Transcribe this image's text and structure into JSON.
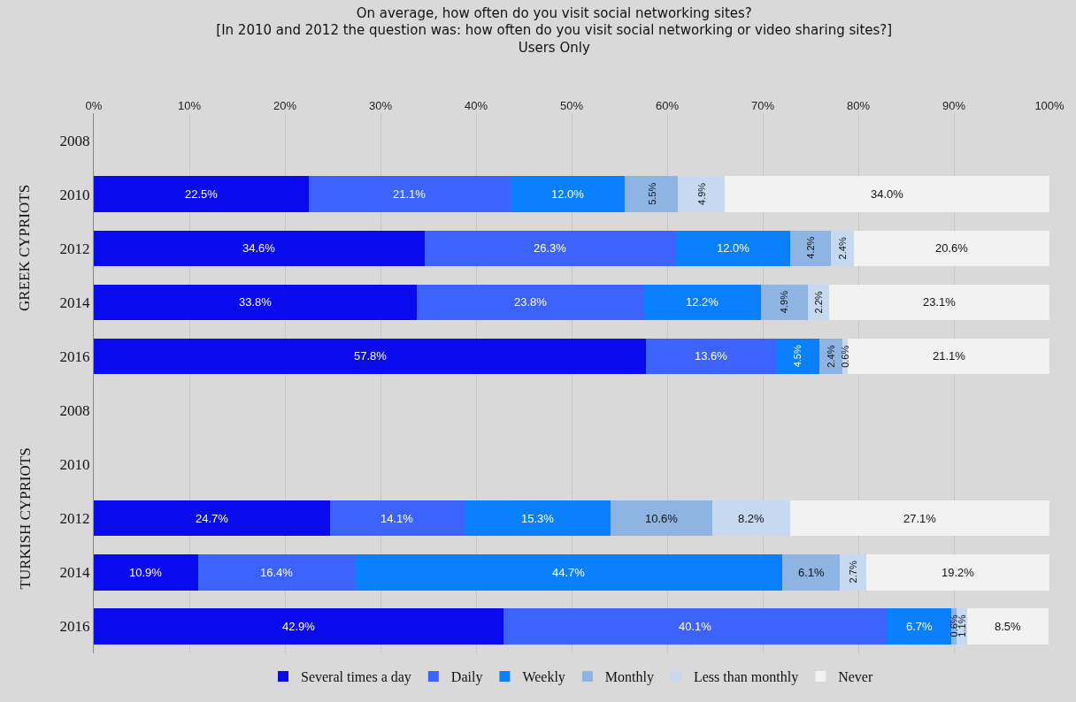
{
  "chart_data": {
    "type": "bar",
    "orientation": "horizontal",
    "stacked": true,
    "title": "On average, how often do you visit social networking sites?\n[In 2010 and 2012 the question was: how often do you visit social networking or video sharing sites?]",
    "subtitle": "Users Only",
    "categories": [
      "2008",
      "2010",
      "2012",
      "2014",
      "2016",
      "2008",
      "2010",
      "2012",
      "2014",
      "2016"
    ],
    "annotations": [
      "GREEK CYPRIOTS",
      "TURKISH CYPRIOTS"
    ],
    "series": [
      {
        "name": "Several times a day",
        "color": "#0a0aee",
        "values": [
          null,
          22.5,
          34.6,
          33.8,
          57.8,
          null,
          null,
          24.7,
          10.9,
          42.9
        ],
        "value_labels": [
          null,
          "22.5%",
          "34.6%",
          "33.8%",
          "57.8%",
          null,
          null,
          "24.7%",
          "10.9%",
          "42.9%"
        ]
      },
      {
        "name": "Daily",
        "color": "#3d63ff",
        "values": [
          null,
          21.1,
          26.3,
          23.8,
          13.6,
          null,
          null,
          14.1,
          16.4,
          40.1
        ],
        "value_labels": [
          null,
          "21.1%",
          "26.3%",
          "23.8%",
          "13.6%",
          null,
          null,
          "14.1%",
          "16.4%",
          "40.1%"
        ]
      },
      {
        "name": "Weekly",
        "color": "#0a80ff",
        "values": [
          null,
          12.0,
          12.0,
          12.2,
          4.5,
          null,
          null,
          15.3,
          44.7,
          6.7
        ],
        "value_labels": [
          null,
          "12.0%",
          "12.0%",
          "12.2%",
          "4.5%",
          null,
          null,
          "15.3%",
          "44.7%",
          "6.7%"
        ]
      },
      {
        "name": "Monthly",
        "color": "#8db4e2",
        "values": [
          null,
          5.5,
          4.2,
          4.9,
          2.4,
          null,
          null,
          10.6,
          6.1,
          0.6
        ],
        "value_labels": [
          null,
          "5.5%",
          "4.2%",
          "4.9%",
          "2.4%",
          null,
          null,
          "10.6%",
          "6.1%",
          "0.6%"
        ]
      },
      {
        "name": "Less than monthly",
        "color": "#c6d9f1",
        "values": [
          null,
          4.9,
          2.4,
          2.2,
          0.6,
          null,
          null,
          8.2,
          2.7,
          1.1
        ],
        "value_labels": [
          null,
          "4.9%",
          "2.4%",
          "2.2%",
          "0.6%",
          null,
          null,
          "8.2%",
          "2.7%",
          "1.1%"
        ]
      },
      {
        "name": "Never",
        "color": "#f2f2f2",
        "values": [
          null,
          34.0,
          20.6,
          23.1,
          21.1,
          null,
          null,
          27.1,
          19.2,
          8.5
        ],
        "value_labels": [
          null,
          "34.0%",
          "20.6%",
          "23.1%",
          "21.1%",
          null,
          null,
          "27.1%",
          "19.2%",
          "8.5%"
        ]
      }
    ],
    "xlim": [
      0,
      100
    ],
    "xticks": [
      {
        "value": 0,
        "label": "0%"
      },
      {
        "value": 10,
        "label": "10%"
      },
      {
        "value": 20,
        "label": "20%"
      },
      {
        "value": 30,
        "label": "30%"
      },
      {
        "value": 40,
        "label": "40%"
      },
      {
        "value": 50,
        "label": "50%"
      },
      {
        "value": 60,
        "label": "60%"
      },
      {
        "value": 70,
        "label": "70%"
      },
      {
        "value": 80,
        "label": "80%"
      },
      {
        "value": 90,
        "label": "90%"
      },
      {
        "value": 100,
        "label": "100%"
      }
    ],
    "grid": "x",
    "legend": "bottom"
  }
}
